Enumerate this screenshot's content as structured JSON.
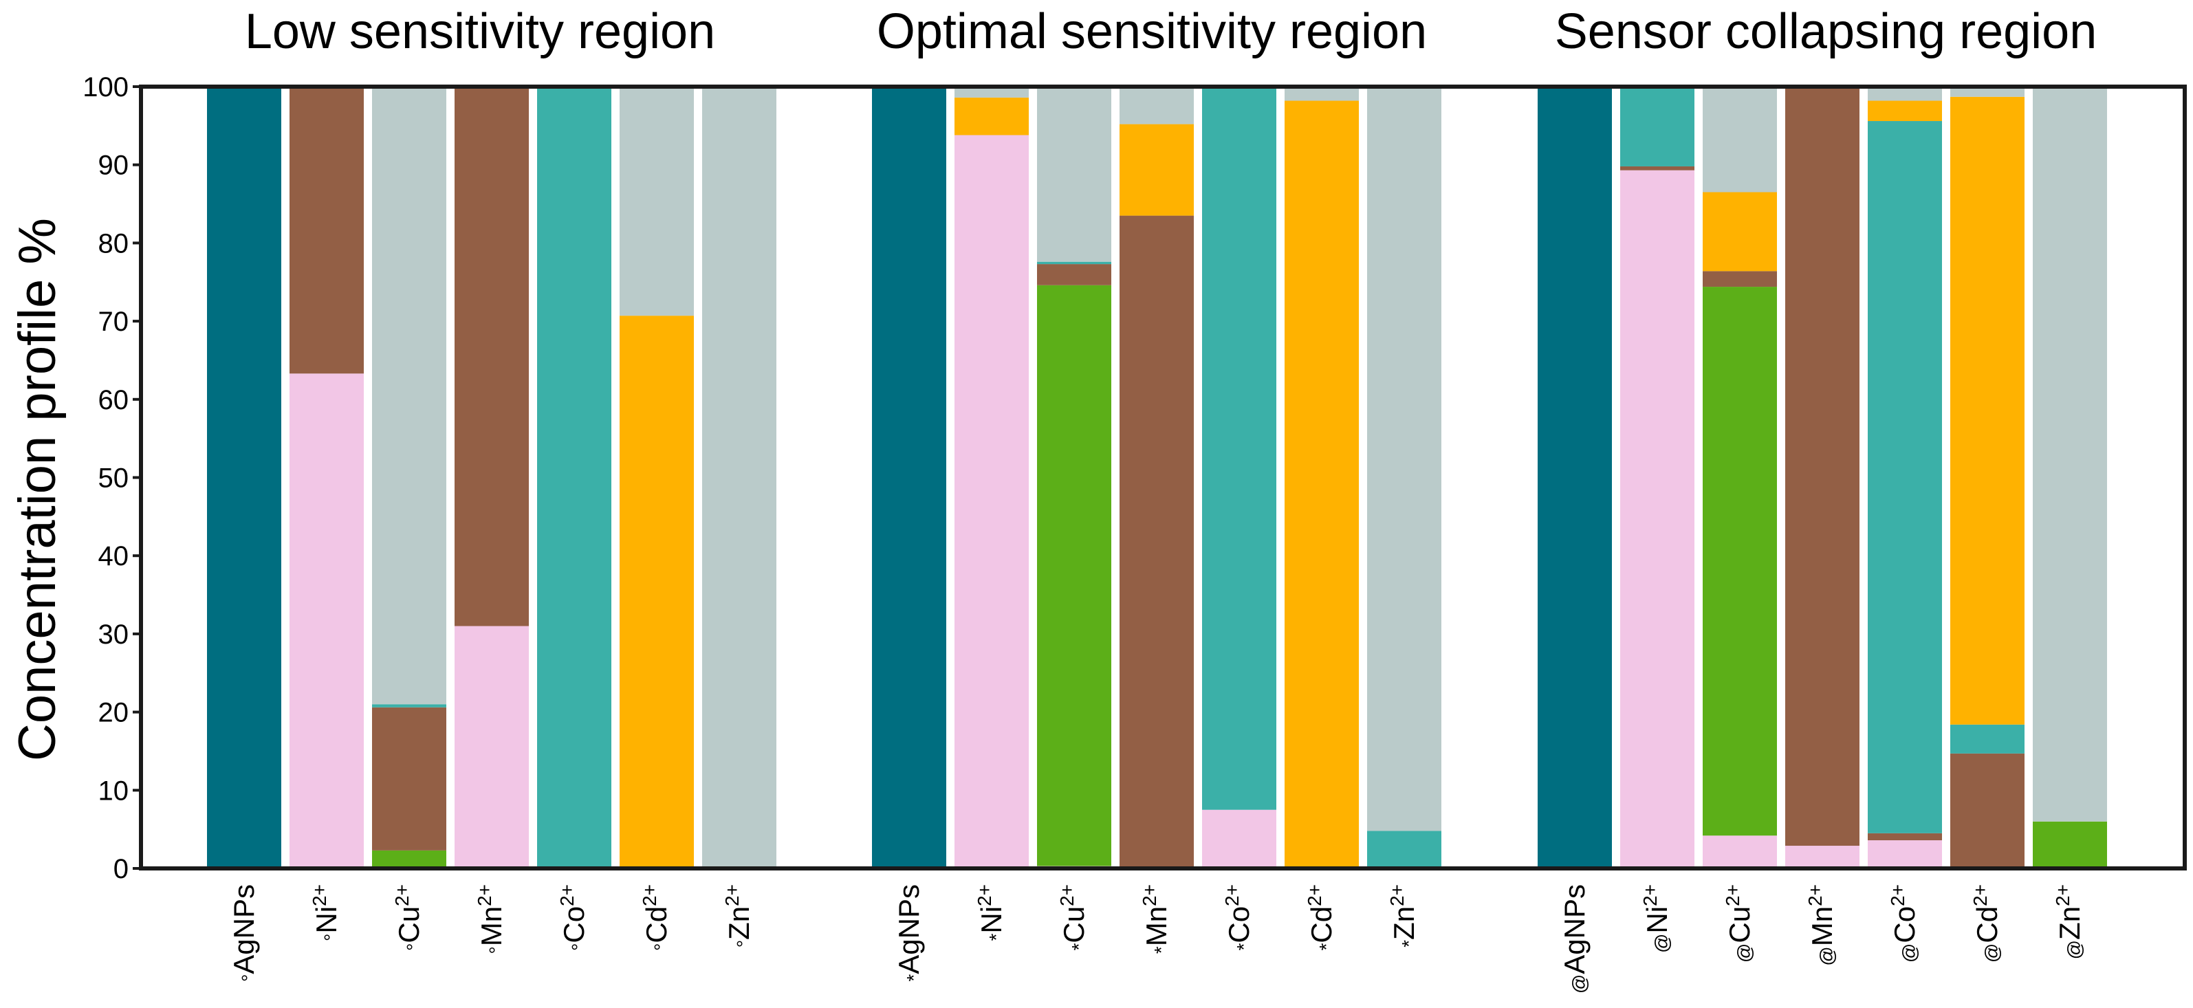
{
  "chart_data": {
    "type": "stacked-bar",
    "ylabel": "Concentration profile %",
    "xlabel": "",
    "ylim": [
      0,
      100
    ],
    "yticks": [
      0,
      10,
      20,
      30,
      40,
      50,
      60,
      70,
      80,
      90,
      100
    ],
    "grid": false,
    "legend": "none",
    "colors": {
      "AgNPs": "#006e80",
      "Ni": "#f2c6e6",
      "Cu": "#5caf18",
      "Mn": "#935f45",
      "Co": "#3bb0a8",
      "Cd": "#ffb200",
      "Zn": "#bacbca"
    },
    "stack_order": [
      "AgNPs",
      "Ni",
      "Cu",
      "Mn",
      "Co",
      "Cd",
      "Zn"
    ],
    "regions": [
      {
        "title": "Low sensitivity region",
        "marker": "°",
        "bars": [
          {
            "ion": "AgNPs",
            "charge": "",
            "segments": {
              "AgNPs": 100
            }
          },
          {
            "ion": "Ni",
            "charge": "2+",
            "segments": {
              "Ni": 63.3,
              "Mn": 36.7
            }
          },
          {
            "ion": "Cu",
            "charge": "2+",
            "segments": {
              "Cu": 2.3,
              "Mn": 18.3,
              "Co": 0.4,
              "Zn": 79
            }
          },
          {
            "ion": "Mn",
            "charge": "2+",
            "segments": {
              "Ni": 31,
              "Mn": 69
            }
          },
          {
            "ion": "Co",
            "charge": "2+",
            "segments": {
              "Co": 100
            }
          },
          {
            "ion": "Cd",
            "charge": "2+",
            "segments": {
              "Cd": 70.7,
              "Zn": 29.3
            }
          },
          {
            "ion": "Zn",
            "charge": "2+",
            "segments": {
              "Zn": 100
            }
          }
        ]
      },
      {
        "title": "Optimal sensitivity region",
        "marker": "*",
        "bars": [
          {
            "ion": "AgNPs",
            "charge": "",
            "segments": {
              "AgNPs": 100
            }
          },
          {
            "ion": "Ni",
            "charge": "2+",
            "segments": {
              "Ni": 93.8,
              "Cd": 4.8,
              "Zn": 1.4
            }
          },
          {
            "ion": "Cu",
            "charge": "2+",
            "segments": {
              "Ni": 0.3,
              "Cu": 74.3,
              "Mn": 2.7,
              "Co": 0.3,
              "Zn": 22.4
            }
          },
          {
            "ion": "Mn",
            "charge": "2+",
            "segments": {
              "Mn": 83.5,
              "Cd": 11.7,
              "Zn": 4.8
            }
          },
          {
            "ion": "Co",
            "charge": "2+",
            "segments": {
              "Ni": 7.5,
              "Co": 92.5
            }
          },
          {
            "ion": "Cd",
            "charge": "2+",
            "segments": {
              "Cd": 98.2,
              "Zn": 1.8
            }
          },
          {
            "ion": "Zn",
            "charge": "2+",
            "segments": {
              "Co": 4.8,
              "Zn": 95.2
            }
          }
        ]
      },
      {
        "title": "Sensor collapsing region",
        "marker": "@",
        "bars": [
          {
            "ion": "AgNPs",
            "charge": "",
            "segments": {
              "AgNPs": 100
            }
          },
          {
            "ion": "Ni",
            "charge": "2+",
            "segments": {
              "Ni": 89.3,
              "Mn": 0.5,
              "Co": 10.2
            }
          },
          {
            "ion": "Cu",
            "charge": "2+",
            "segments": {
              "Ni": 4.2,
              "Cu": 70.2,
              "Mn": 2,
              "Cd": 10.1,
              "Zn": 13.5
            }
          },
          {
            "ion": "Mn",
            "charge": "2+",
            "segments": {
              "Ni": 2.9,
              "Mn": 97.1
            }
          },
          {
            "ion": "Co",
            "charge": "2+",
            "segments": {
              "Ni": 3.6,
              "Mn": 0.9,
              "Co": 91.1,
              "Cd": 2.6,
              "Zn": 1.8
            }
          },
          {
            "ion": "Cd",
            "charge": "2+",
            "segments": {
              "Mn": 14.7,
              "Co": 3.7,
              "Cd": 80.3,
              "Zn": 1.3
            }
          },
          {
            "ion": "Zn",
            "charge": "2+",
            "segments": {
              "Cu": 6,
              "Zn": 94
            }
          }
        ]
      }
    ]
  }
}
